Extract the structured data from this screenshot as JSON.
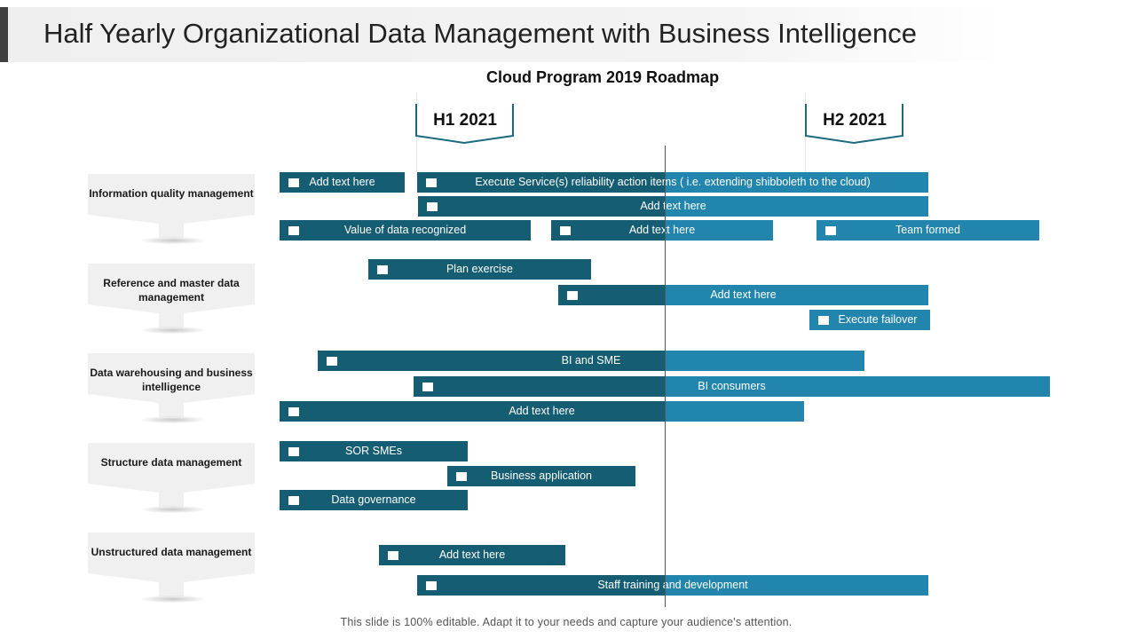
{
  "title": "Half Yearly Organizational Data Management with Business Intelligence",
  "subtitle": "Cloud Program 2019 Roadmap",
  "phases": [
    {
      "label": "H1 2021"
    },
    {
      "label": "H2 2021"
    }
  ],
  "categories": [
    {
      "label": "Information quality management"
    },
    {
      "label": "Reference and master data management"
    },
    {
      "label": "Data warehousing and business intelligence"
    },
    {
      "label": "Structure data management"
    },
    {
      "label": "Unstructured data management"
    }
  ],
  "tasks": [
    {
      "label": "Add text here"
    },
    {
      "label": "Execute Service(s)  reliability action items ( i.e. extending shibboleth to the cloud)"
    },
    {
      "label": "Add text here"
    },
    {
      "label": "Value of data recognized"
    },
    {
      "label": "Add text here"
    },
    {
      "label": "Team formed"
    },
    {
      "label": "Plan exercise"
    },
    {
      "label": "Add text here"
    },
    {
      "label": "Execute failover"
    },
    {
      "label": "BI and SME"
    },
    {
      "label": "BI consumers"
    },
    {
      "label": "Add text here"
    },
    {
      "label": "SOR SMEs"
    },
    {
      "label": "Business application"
    },
    {
      "label": "Data governance"
    },
    {
      "label": "Add text here"
    },
    {
      "label": "Staff training and development"
    }
  ],
  "footer": "This slide is 100% editable. Adapt it to your needs and capture your audience's attention.",
  "colors": {
    "dark": "#145d72",
    "light": "#2185ad",
    "card": "#f0f0f0"
  }
}
